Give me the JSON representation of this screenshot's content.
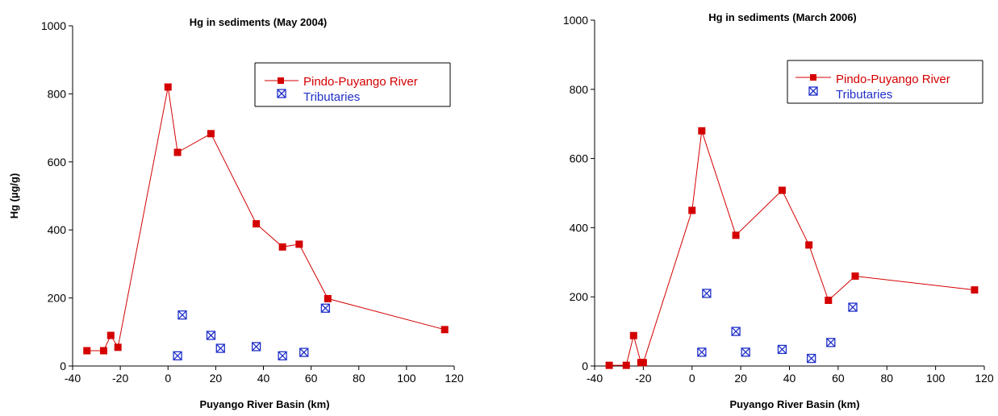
{
  "colors": {
    "river": "#d40000",
    "tributaries": "#2030c8",
    "axis": "#000000"
  },
  "chart_data": [
    {
      "type": "scatter",
      "title": "Hg in sediments (May 2004)",
      "xlabel": "Puyango River Basin (km)",
      "ylabel": "Hg (µg/g)",
      "xlim": [
        -40,
        120
      ],
      "ylim": [
        0,
        1000
      ],
      "xticks": [
        -40,
        -20,
        0,
        20,
        40,
        60,
        80,
        100,
        120
      ],
      "yticks": [
        0,
        200,
        400,
        600,
        800,
        1000
      ],
      "legend_position": "top-right",
      "series": [
        {
          "name": "Pindo-Puyango River",
          "style": "line-square",
          "color": "#d40000",
          "points": [
            [
              -34,
              45
            ],
            [
              -27,
              45
            ],
            [
              -24,
              90
            ],
            [
              -21,
              55
            ],
            [
              0,
              820
            ],
            [
              4,
              628
            ],
            [
              18,
              683
            ],
            [
              37,
              418
            ],
            [
              48,
              350
            ],
            [
              55,
              358
            ],
            [
              67,
              198
            ],
            [
              116,
              107
            ]
          ]
        },
        {
          "name": "Tributaries",
          "style": "marker-x-box",
          "color": "#2030c8",
          "points": [
            [
              4,
              30
            ],
            [
              6,
              150
            ],
            [
              18,
              90
            ],
            [
              22,
              52
            ],
            [
              37,
              57
            ],
            [
              48,
              30
            ],
            [
              57,
              40
            ],
            [
              66,
              170
            ]
          ]
        }
      ]
    },
    {
      "type": "scatter",
      "title": "Hg in sediments (March 2006)",
      "xlabel": "Puyango River Basin (km)",
      "ylabel": "",
      "xlim": [
        -40,
        120
      ],
      "ylim": [
        0,
        1000
      ],
      "xticks": [
        -40,
        -20,
        0,
        20,
        40,
        60,
        80,
        100,
        120
      ],
      "yticks": [
        0,
        200,
        400,
        600,
        800,
        1000
      ],
      "legend_position": "top-right",
      "series": [
        {
          "name": "Pindo-Puyango River",
          "style": "line-square",
          "color": "#d40000",
          "points": [
            [
              -34,
              2
            ],
            [
              -27,
              2
            ],
            [
              -24,
              88
            ],
            [
              -21,
              10
            ],
            [
              -20,
              10
            ],
            [
              0,
              450
            ],
            [
              4,
              680
            ],
            [
              18,
              378
            ],
            [
              37,
              508
            ],
            [
              48,
              350
            ],
            [
              56,
              190
            ],
            [
              67,
              260
            ],
            [
              116,
              220
            ]
          ]
        },
        {
          "name": "Tributaries",
          "style": "marker-x-box",
          "color": "#2030c8",
          "points": [
            [
              4,
              40
            ],
            [
              6,
              210
            ],
            [
              18,
              100
            ],
            [
              22,
              40
            ],
            [
              37,
              48
            ],
            [
              49,
              22
            ],
            [
              57,
              68
            ],
            [
              66,
              170
            ]
          ]
        }
      ]
    }
  ]
}
